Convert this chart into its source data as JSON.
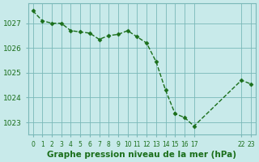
{
  "x": [
    0,
    1,
    2,
    3,
    4,
    5,
    6,
    7,
    8,
    9,
    10,
    11,
    12,
    13,
    14,
    15,
    16,
    17,
    22,
    23
  ],
  "y": [
    1027.5,
    1027.1,
    1027.0,
    1027.0,
    1026.7,
    1026.65,
    1026.6,
    1026.35,
    1026.5,
    1026.55,
    1026.7,
    1026.45,
    1026.2,
    1025.45,
    1024.3,
    1023.35,
    1023.2,
    1022.85,
    1024.7,
    1024.55
  ],
  "xticks": [
    0,
    1,
    2,
    3,
    4,
    5,
    6,
    7,
    8,
    9,
    10,
    11,
    12,
    13,
    14,
    15,
    16,
    17,
    22,
    23
  ],
  "xtick_labels": [
    "0",
    "1",
    "2",
    "3",
    "4",
    "5",
    "6",
    "7",
    "8",
    "9",
    "10",
    "11",
    "12",
    "13",
    "14",
    "15",
    "16",
    "17",
    "22",
    "23"
  ],
  "yticks": [
    1023,
    1024,
    1025,
    1026,
    1027
  ],
  "ylim": [
    1022.5,
    1027.8
  ],
  "xlim": [
    -0.5,
    23.5
  ],
  "line_color": "#1a6e1a",
  "marker_color": "#1a6e1a",
  "bg_color": "#c8eaea",
  "grid_color": "#7ab8b8",
  "xlabel": "Graphe pression niveau de la mer (hPa)",
  "xlabel_color": "#1a6e1a",
  "label_fontsize": 7.5
}
